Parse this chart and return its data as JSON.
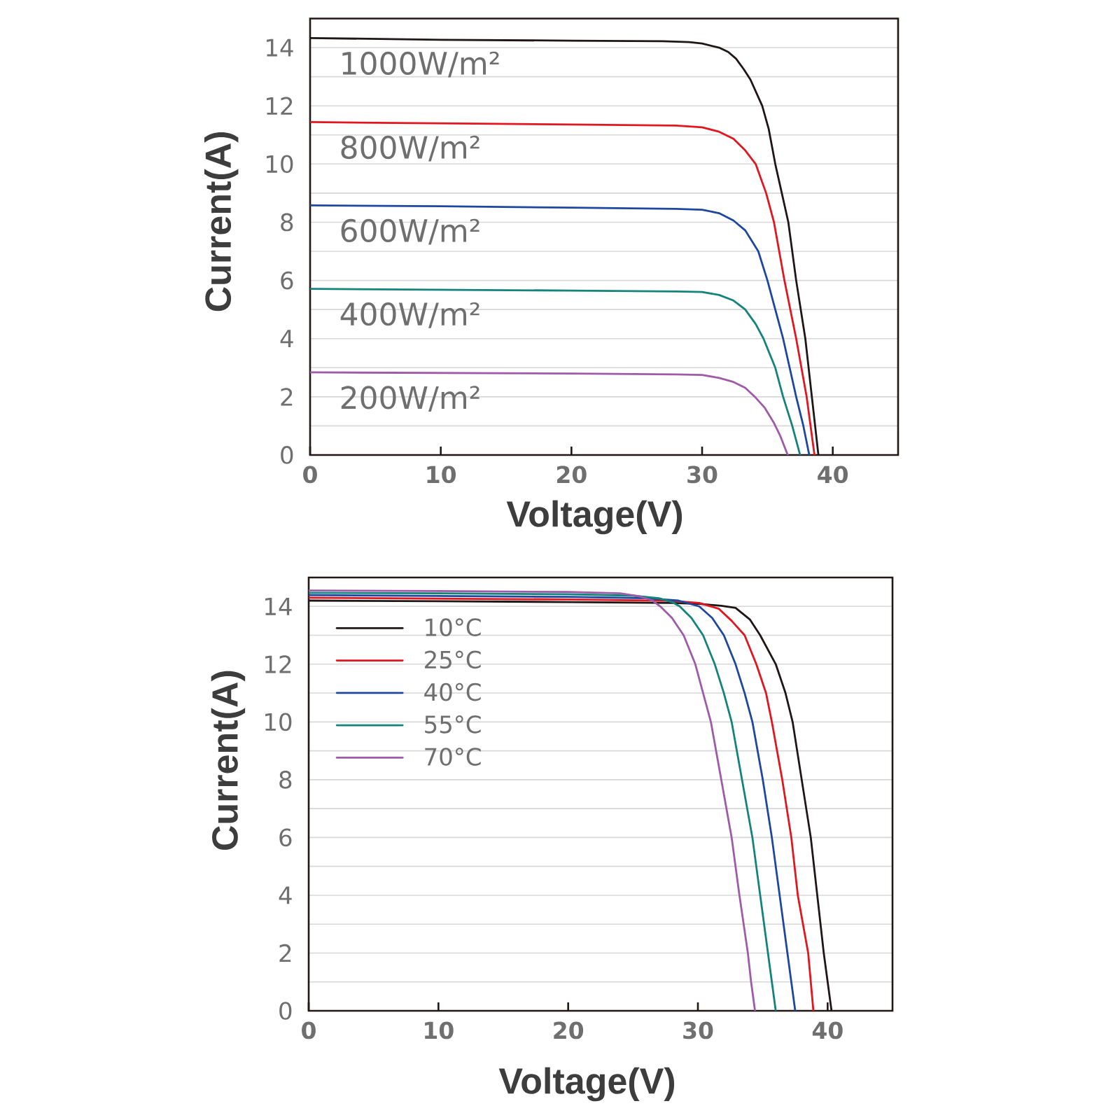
{
  "chart_data": [
    {
      "type": "line",
      "xlabel": "Voltage(V)",
      "ylabel": "Current(A)",
      "xlim": [
        0,
        45
      ],
      "ylim": [
        0,
        15
      ],
      "xticks": [
        0,
        10,
        20,
        30,
        40
      ],
      "yticks": [
        0,
        {
          "value": 1,
          "label": null
        },
        2,
        {
          "value": 3,
          "label": null
        },
        4,
        {
          "value": 5,
          "label": null
        },
        6,
        {
          "value": 7,
          "label": null
        },
        8,
        {
          "value": 9,
          "label": null
        },
        10,
        {
          "value": 11,
          "label": null
        },
        12,
        {
          "value": 13,
          "label": null
        },
        14
      ],
      "grid": "y",
      "series": [
        {
          "name": "1000W/m²",
          "color": "#1e1715",
          "x": [
            0,
            10,
            20,
            27,
            29,
            30,
            31.3,
            32.0,
            32.6,
            33.2,
            33.7,
            34.2,
            34.6,
            35.1,
            35.6,
            36.1,
            36.6,
            37.2,
            37.9,
            38.4,
            38.9
          ],
          "values": [
            14.33,
            14.27,
            14.24,
            14.22,
            14.19,
            14.14,
            14.0,
            13.85,
            13.62,
            13.25,
            12.9,
            12.4,
            12.0,
            11.2,
            10.0,
            9.0,
            8.0,
            6.0,
            4.0,
            2.0,
            0
          ]
        },
        {
          "name": "800W/m²",
          "color": "#e2161f",
          "x": [
            0,
            10,
            20,
            28,
            30,
            31.3,
            32.4,
            33.3,
            34.1,
            34.9,
            35.5,
            36.3,
            37.2,
            38.0,
            38.6
          ],
          "values": [
            11.44,
            11.4,
            11.36,
            11.32,
            11.26,
            11.11,
            10.87,
            10.47,
            10.0,
            9.0,
            8.0,
            6.0,
            4.0,
            2.0,
            0
          ]
        },
        {
          "name": "600W/m²",
          "color": "#1e48a0",
          "x": [
            0,
            10,
            20,
            28,
            30,
            31.3,
            32.4,
            33.3,
            34.3,
            35.0,
            35.6,
            36.2,
            36.7,
            37.2,
            37.75,
            38.2
          ],
          "values": [
            8.58,
            8.55,
            8.5,
            8.46,
            8.43,
            8.31,
            8.06,
            7.72,
            7.0,
            6.0,
            5.0,
            4.0,
            3.0,
            2.0,
            1.0,
            0
          ]
        },
        {
          "name": "400W/m²",
          "color": "#13837b",
          "x": [
            0,
            10,
            20,
            28,
            30,
            31.3,
            32.4,
            33.3,
            34.1,
            34.7,
            35.6,
            36.2,
            36.9,
            37.5
          ],
          "values": [
            5.71,
            5.68,
            5.65,
            5.62,
            5.6,
            5.5,
            5.31,
            5.0,
            4.5,
            4.0,
            3.0,
            2.0,
            1.0,
            0
          ]
        },
        {
          "name": "200W/m²",
          "color": "#a05ba8",
          "x": [
            0,
            10,
            20,
            28,
            30,
            31.3,
            32.4,
            33.3,
            34.1,
            34.8,
            35.5,
            36.0,
            36.55
          ],
          "values": [
            2.84,
            2.82,
            2.8,
            2.77,
            2.75,
            2.65,
            2.51,
            2.31,
            1.97,
            1.62,
            1.1,
            0.64,
            0
          ]
        }
      ]
    },
    {
      "type": "line",
      "xlabel": "Voltage(V)",
      "ylabel": "Current(A)",
      "xlim": [
        0,
        45
      ],
      "ylim": [
        0,
        15
      ],
      "xticks": [
        0,
        10,
        20,
        30,
        40
      ],
      "yticks": [
        0,
        {
          "value": 1,
          "label": null
        },
        2,
        {
          "value": 3,
          "label": null
        },
        4,
        {
          "value": 5,
          "label": null
        },
        6,
        {
          "value": 7,
          "label": null
        },
        8,
        {
          "value": 9,
          "label": null
        },
        10,
        {
          "value": 11,
          "label": null
        },
        12,
        {
          "value": 13,
          "label": null
        },
        14
      ],
      "grid": "y",
      "legend": "top left",
      "series": [
        {
          "name": "10°C",
          "color": "#1e1715",
          "x": [
            0,
            10,
            20,
            28,
            30.1,
            31.8,
            32.9,
            34.0,
            34.8,
            36.0,
            36.75,
            37.3,
            38.0,
            38.7,
            39.2,
            39.7,
            40.0,
            40.3
          ],
          "values": [
            14.2,
            14.18,
            14.15,
            14.12,
            14.09,
            14.02,
            13.95,
            13.55,
            13.0,
            12.0,
            11.0,
            10.0,
            8.0,
            6.0,
            4.0,
            2.0,
            1.0,
            0
          ]
        },
        {
          "name": "25°C",
          "color": "#e2161f",
          "x": [
            0,
            10,
            20,
            28,
            30.1,
            31.6,
            32.6,
            33.6,
            34.5,
            35.25,
            35.7,
            36.5,
            37.2,
            37.7,
            38.5,
            38.7,
            38.9
          ],
          "values": [
            14.3,
            14.27,
            14.24,
            14.19,
            14.12,
            13.92,
            13.5,
            13.0,
            12.0,
            11.0,
            10.0,
            8.0,
            6.0,
            4.0,
            2.0,
            1.0,
            0
          ]
        },
        {
          "name": "40°C",
          "color": "#1e48a0",
          "x": [
            0,
            10,
            20,
            26,
            28.5,
            30.1,
            31.1,
            32.0,
            32.9,
            33.6,
            34.2,
            35.0,
            35.7,
            36.3,
            36.9,
            37.2,
            37.5
          ],
          "values": [
            14.39,
            14.36,
            14.33,
            14.28,
            14.2,
            14.0,
            13.6,
            13.0,
            12.0,
            11.0,
            10.0,
            8.0,
            6.0,
            4.0,
            2.0,
            1.0,
            0
          ]
        },
        {
          "name": "55°C",
          "color": "#13837b",
          "x": [
            0,
            10,
            20,
            25,
            27,
            28,
            28.6,
            29.5,
            30.4,
            31.3,
            32.0,
            32.6,
            33.4,
            34.2,
            34.8,
            35.4,
            35.7,
            36.0
          ],
          "values": [
            14.47,
            14.45,
            14.42,
            14.37,
            14.28,
            14.15,
            14.0,
            13.6,
            13.0,
            12.0,
            11.0,
            10.0,
            8.0,
            6.0,
            4.0,
            2.0,
            1.0,
            0
          ]
        },
        {
          "name": "70°C",
          "color": "#a05ba8",
          "x": [
            0,
            10,
            20,
            24,
            25.5,
            26.5,
            27.1,
            28.0,
            28.9,
            29.8,
            30.4,
            31.0,
            31.8,
            32.6,
            33.2,
            33.85,
            34.1,
            34.4
          ],
          "values": [
            14.55,
            14.53,
            14.5,
            14.45,
            14.35,
            14.2,
            14.0,
            13.6,
            13.0,
            12.0,
            11.0,
            10.0,
            8.0,
            6.0,
            4.0,
            2.0,
            1.0,
            0
          ]
        }
      ]
    }
  ]
}
